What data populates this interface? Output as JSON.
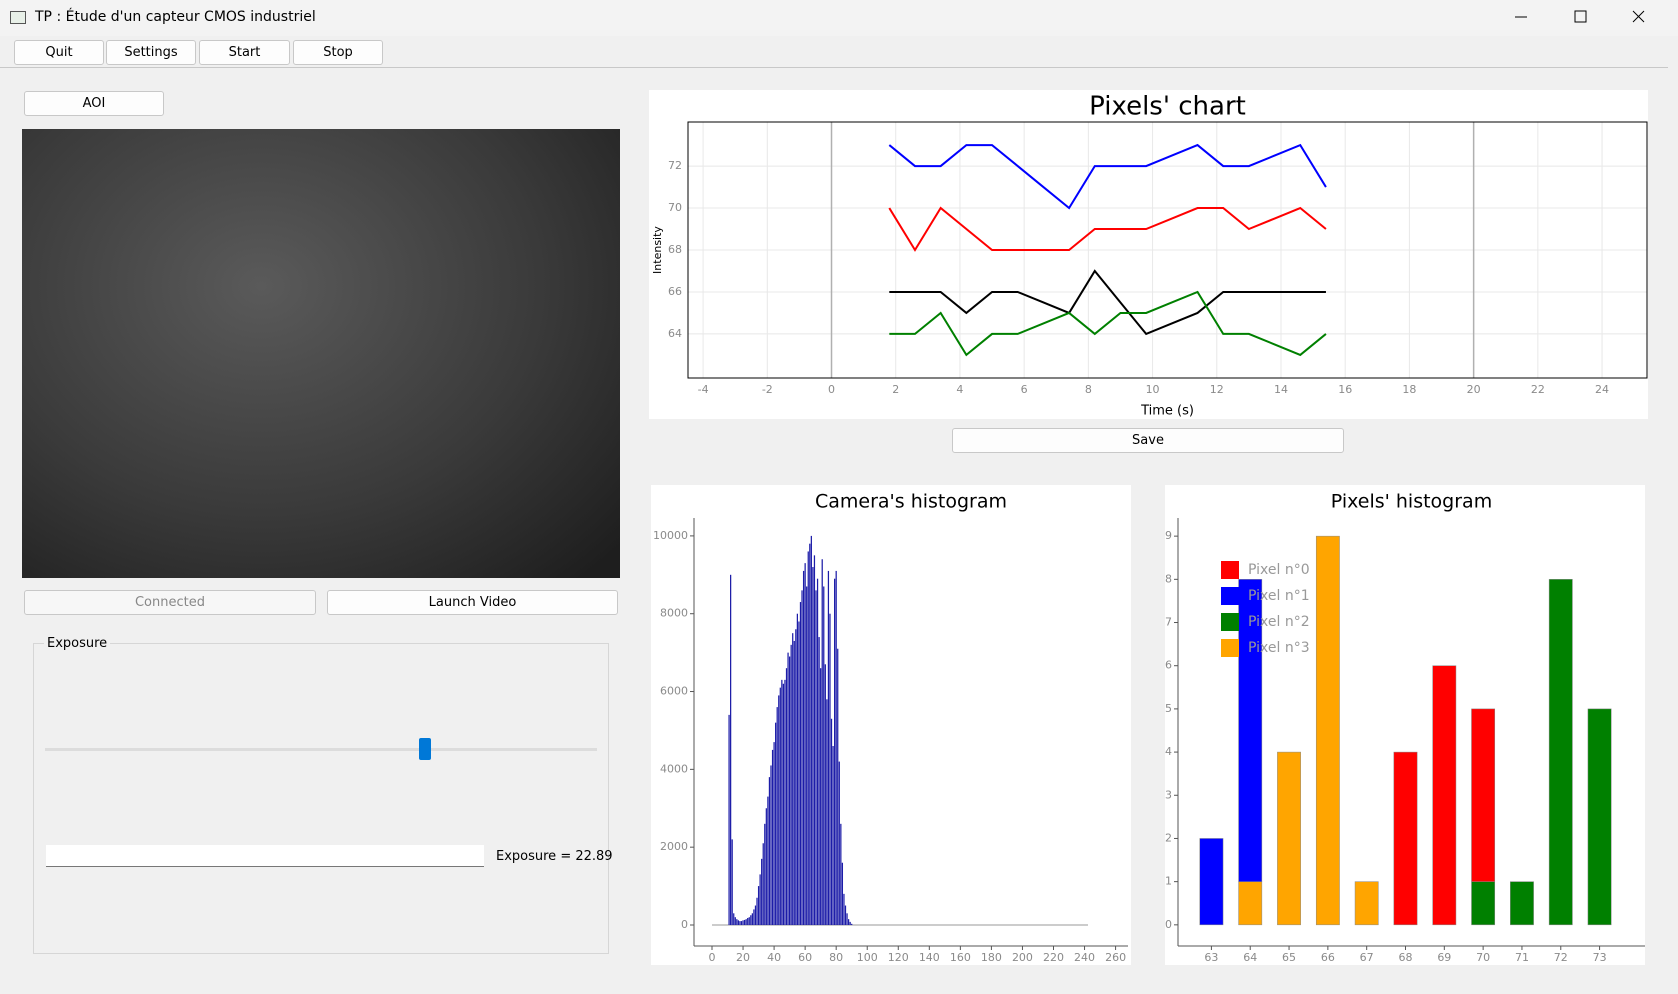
{
  "window": {
    "title": "TP : Étude d'un capteur CMOS industriel"
  },
  "toolbar": [
    "Quit",
    "Settings",
    "Start",
    "Stop"
  ],
  "buttons": {
    "aoi": "AOI",
    "connected": "Connected",
    "launch": "Launch Video",
    "save": "Save"
  },
  "exposure": {
    "group_title": "Exposure",
    "label": "Exposure = 22.89"
  },
  "chart_data": [
    {
      "type": "line",
      "title": "Pixels' chart",
      "xlabel": "Time (s)",
      "ylabel": "Intensity",
      "xlim": [
        -4.47,
        25.4
      ],
      "ylim": [
        61.9,
        74.1
      ],
      "xticks": [
        -4,
        -2,
        0,
        2,
        4,
        6,
        8,
        10,
        12,
        14,
        16,
        18,
        20,
        22,
        24
      ],
      "yticks": [
        64,
        66,
        68,
        70,
        72
      ],
      "grid": true,
      "vlines": [
        0,
        20
      ],
      "x": [
        1.8,
        2.6,
        3.4,
        4.2,
        5,
        5.8,
        6.6,
        7.4,
        8.2,
        9,
        9.8,
        10.6,
        11.4,
        12.2,
        13,
        13.8,
        14.6,
        15.4
      ],
      "series": [
        {
          "color": "#0000ff",
          "values": [
            73,
            72,
            72,
            73,
            73,
            72,
            71,
            70,
            72,
            72,
            72,
            72.5,
            73,
            72,
            72,
            72.5,
            73,
            71
          ]
        },
        {
          "color": "#ff0000",
          "values": [
            70,
            68,
            70,
            69,
            68,
            68,
            68,
            68,
            69,
            69,
            69,
            69.5,
            70,
            70,
            69,
            69.5,
            70,
            69
          ]
        },
        {
          "color": "#000000",
          "values": [
            66,
            66,
            66,
            65,
            66,
            66,
            65.5,
            65,
            67,
            65.5,
            64,
            64.5,
            65,
            66,
            66,
            66,
            66,
            66
          ]
        },
        {
          "color": "#008000",
          "values": [
            64,
            64,
            65,
            63,
            64,
            64,
            64.5,
            65,
            64,
            65,
            65,
            65.5,
            66,
            64,
            64,
            63.5,
            63,
            64
          ]
        }
      ]
    },
    {
      "type": "bar",
      "title": "Camera's histogram",
      "color": "#1c1ca8",
      "xlim": [
        -11.6,
        268
      ],
      "ylim": [
        -540,
        10460
      ],
      "xticks": [
        0,
        20,
        40,
        60,
        80,
        100,
        120,
        140,
        160,
        180,
        200,
        220,
        240,
        260
      ],
      "yticks": [
        0,
        2000,
        4000,
        6000,
        8000,
        10000
      ],
      "x": [
        10,
        11,
        12,
        13,
        14,
        15,
        16,
        17,
        18,
        19,
        20,
        21,
        22,
        23,
        24,
        25,
        26,
        27,
        28,
        29,
        30,
        31,
        32,
        33,
        34,
        35,
        36,
        37,
        38,
        39,
        40,
        41,
        42,
        43,
        44,
        45,
        46,
        47,
        48,
        49,
        50,
        51,
        52,
        53,
        54,
        55,
        56,
        57,
        58,
        59,
        60,
        61,
        62,
        63,
        64,
        65,
        66,
        67,
        68,
        69,
        70,
        71,
        72,
        73,
        74,
        75,
        76,
        77,
        78,
        79,
        80,
        81,
        82,
        83,
        84,
        85,
        86,
        87,
        88,
        89,
        90
      ],
      "values": [
        0,
        5400,
        9000,
        2200,
        300,
        200,
        150,
        120,
        100,
        100,
        120,
        130,
        150,
        180,
        200,
        250,
        300,
        400,
        500,
        700,
        1000,
        1300,
        1700,
        2100,
        2600,
        3000,
        3300,
        3800,
        4100,
        4500,
        4700,
        5200,
        5600,
        5900,
        6100,
        6300,
        6200,
        6300,
        6600,
        7000,
        6900,
        7200,
        7500,
        7300,
        7600,
        8000,
        7800,
        8300,
        8600,
        9100,
        9300,
        8700,
        9600,
        9800,
        10000,
        9200,
        9500,
        8600,
        8900,
        7400,
        6600,
        9400,
        8700,
        6700,
        5800,
        9100,
        8000,
        5300,
        4600,
        8900,
        9100,
        7100,
        4200,
        2600,
        1600,
        800,
        500,
        300,
        150,
        80,
        30
      ]
    },
    {
      "type": "stacked_bar",
      "title": "Pixels' histogram",
      "legend": "upper left",
      "categories": [
        63,
        64,
        65,
        66,
        67,
        68,
        69,
        70,
        71,
        72,
        73
      ],
      "ylim": [
        -0.49,
        9.42
      ],
      "yticks": [
        0,
        1,
        2,
        3,
        4,
        5,
        6,
        7,
        8,
        9
      ],
      "series": [
        {
          "name": "Pixel n°0",
          "color": "#ff0000",
          "values": [
            0,
            0,
            0,
            0,
            0,
            4,
            6,
            4,
            0,
            0,
            0
          ]
        },
        {
          "name": "Pixel n°1",
          "color": "#0000ff",
          "values": [
            2,
            7,
            0,
            0,
            0,
            0,
            0,
            0,
            0,
            0,
            0
          ]
        },
        {
          "name": "Pixel n°2",
          "color": "#008000",
          "values": [
            0,
            0,
            0,
            0,
            0,
            0,
            0,
            1,
            1,
            8,
            5
          ]
        },
        {
          "name": "Pixel n°3",
          "color": "#ffa500",
          "values": [
            0,
            1,
            4,
            9,
            1,
            0,
            0,
            0,
            0,
            0,
            0
          ]
        }
      ]
    }
  ]
}
